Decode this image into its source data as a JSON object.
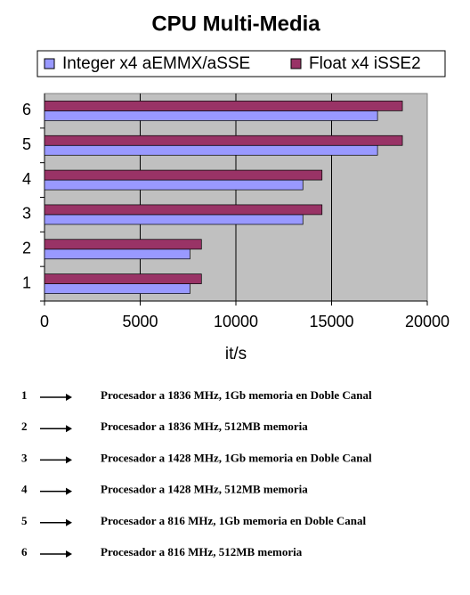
{
  "chart_data": {
    "type": "hbar",
    "title": "CPU Multi-Media",
    "x_label": "it/s",
    "categories": [
      "1",
      "2",
      "3",
      "4",
      "5",
      "6"
    ],
    "series": [
      {
        "name": "Integer x4 aEMMX/aSSE",
        "color": "#9999ff",
        "values": [
          7600,
          7600,
          13500,
          13500,
          17400,
          17400
        ]
      },
      {
        "name": "Float x4 iSSE2",
        "color": "#993366",
        "values": [
          8200,
          8200,
          14500,
          14500,
          18700,
          18700
        ]
      }
    ],
    "xlim": [
      0,
      20000
    ],
    "xticks": [
      0,
      5000,
      10000,
      15000,
      20000
    ],
    "grid": true,
    "legend": "top"
  },
  "notes": [
    {
      "number": "1",
      "text": "Procesador a 1836 MHz, 1Gb memoria en Doble Canal"
    },
    {
      "number": "2",
      "text": "Procesador a 1836 MHz, 512MB memoria"
    },
    {
      "number": "3",
      "text": "Procesador a 1428 MHz, 1Gb memoria en Doble Canal"
    },
    {
      "number": "4",
      "text": "Procesador a 1428 MHz, 512MB memoria"
    },
    {
      "number": "5",
      "text": "Procesador a 816 MHz, 1Gb memoria en Doble Canal"
    },
    {
      "number": "6",
      "text": "Procesador a 816 MHz, 512MB memoria"
    }
  ]
}
